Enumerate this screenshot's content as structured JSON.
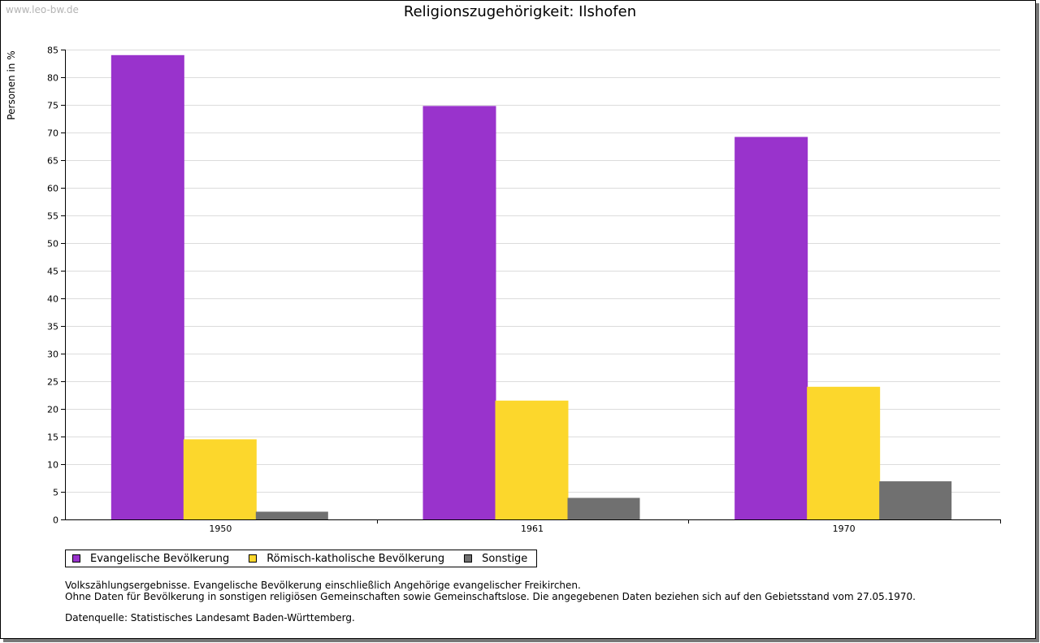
{
  "watermark": "www.leo-bw.de",
  "chart_data": {
    "type": "bar",
    "title": "Religionszugehörigkeit: Ilshofen",
    "xlabel": "",
    "ylabel": "Personen in %",
    "ylim": [
      0,
      85
    ],
    "ytick_step": 5,
    "grid": true,
    "categories": [
      "1950",
      "1961",
      "1970"
    ],
    "series": [
      {
        "name": "Evangelische Bevölkerung",
        "color": "#9933cc",
        "values": [
          84.0,
          74.8,
          69.2
        ]
      },
      {
        "name": "Römisch-katholische Bevölkerung",
        "color": "#fcd72c",
        "values": [
          14.5,
          21.5,
          24.0
        ]
      },
      {
        "name": "Sonstige",
        "color": "#707070",
        "values": [
          1.4,
          3.9,
          6.9
        ]
      }
    ],
    "legend_position": "bottom-left"
  },
  "notes": {
    "line1": "Volkszählungsergebnisse. Evangelische Bevölkerung einschließlich Angehörige evangelischer Freikirchen.",
    "line2": "Ohne Daten für Bevölkerung in sonstigen religiösen Gemeinschaften sowie Gemeinschaftslose. Die angegebenen Daten beziehen sich auf den Gebietsstand vom 27.05.1970.",
    "source": "Datenquelle: Statistisches Landesamt Baden-Württemberg."
  }
}
